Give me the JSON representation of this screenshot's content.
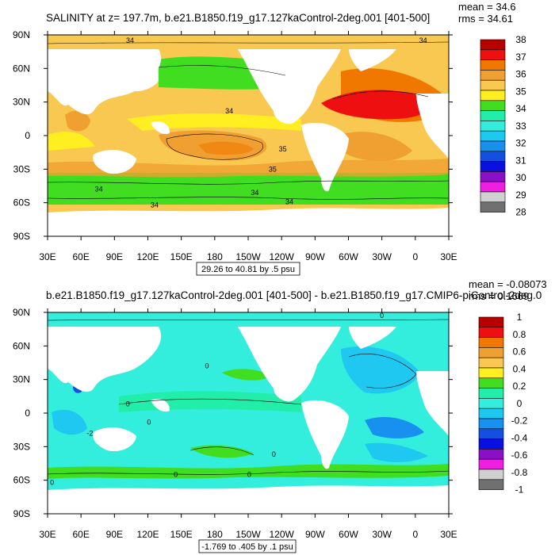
{
  "chart_data": [
    {
      "type": "heatmap",
      "title": "SALINITY at z= 197.7m, b.e21.B1850.f19_g17.127kaControl-2deg.001 [401-500]",
      "stats": [
        "mean = 34.6",
        "rms = 34.61"
      ],
      "x_ticks": [
        "30E",
        "60E",
        "90E",
        "120E",
        "150E",
        "180",
        "150W",
        "120W",
        "90W",
        "60W",
        "30W",
        "0",
        "30E"
      ],
      "y_ticks": [
        "90N",
        "60N",
        "30N",
        "0",
        "30S",
        "60S",
        "90S"
      ],
      "xlim": [
        30,
        390
      ],
      "ylim": [
        -90,
        90
      ],
      "range_label": "29.26 to 40.81 by .5 psu",
      "colorbar": {
        "labels": [
          "38",
          "37",
          "36",
          "35",
          "34",
          "33",
          "32",
          "31",
          "30",
          "29",
          "28"
        ],
        "colors": [
          "#b80000",
          "#ee1010",
          "#f07800",
          "#f0a030",
          "#f8c850",
          "#ffee20",
          "#40dd20",
          "#22eeaa",
          "#33eedd",
          "#1ec8f0",
          "#1890f0",
          "#1450e0",
          "#0a10e0",
          "#8a10c8",
          "#ee20e0",
          "#d0d0d0",
          "#707070"
        ]
      },
      "contour_labels": [
        {
          "text": "34",
          "lon": 104,
          "lat": 85
        },
        {
          "text": "34",
          "lon": 367,
          "lat": 85
        },
        {
          "text": "34",
          "lon": 193,
          "lat": 22
        },
        {
          "text": "35",
          "lon": 241,
          "lat": -12
        },
        {
          "text": "35",
          "lon": 232,
          "lat": -30
        },
        {
          "text": "34",
          "lon": 76,
          "lat": -48
        },
        {
          "text": "34",
          "lon": 126,
          "lat": -62
        },
        {
          "text": "34",
          "lon": 216,
          "lat": -51
        },
        {
          "text": "34",
          "lon": 247,
          "lat": -59
        }
      ]
    },
    {
      "type": "heatmap",
      "title": "b.e21.B1850.f19_g17.127kaControl-2deg.001 [401-500] - b.e21.B1850.f19_g17.CMIP6-piControl-2deg.0",
      "stats": [
        "mean = -0.08073",
        "rms = 0.1669"
      ],
      "x_ticks": [
        "30E",
        "60E",
        "90E",
        "120E",
        "150E",
        "180",
        "150W",
        "120W",
        "90W",
        "60W",
        "30W",
        "0",
        "30E"
      ],
      "y_ticks": [
        "90N",
        "60N",
        "30N",
        "0",
        "30S",
        "60S",
        "90S"
      ],
      "xlim": [
        30,
        390
      ],
      "ylim": [
        -90,
        90
      ],
      "range_label": "-1.769 to .405 by .1 psu",
      "colorbar": {
        "labels": [
          "1",
          "0.8",
          "0.6",
          "0.4",
          "0.2",
          "0",
          "-0.2",
          "-0.4",
          "-0.6",
          "-0.8",
          "-1"
        ],
        "colors": [
          "#b80000",
          "#ee1010",
          "#f07800",
          "#f0a030",
          "#f8c850",
          "#ffee20",
          "#40dd20",
          "#22eeaa",
          "#33eedd",
          "#1ec8f0",
          "#1890f0",
          "#1450e0",
          "#0a10e0",
          "#8a10c8",
          "#ee20e0",
          "#d0d0d0",
          "#707070"
        ]
      },
      "contour_labels": [
        {
          "text": "0",
          "lon": 330,
          "lat": 87
        },
        {
          "text": "0",
          "lon": 173,
          "lat": 42
        },
        {
          "text": "0",
          "lon": 102,
          "lat": 8
        },
        {
          "text": "0",
          "lon": 121,
          "lat": -8
        },
        {
          "text": "-2",
          "lon": 68,
          "lat": -18
        },
        {
          "text": "0",
          "lon": 233,
          "lat": -37
        },
        {
          "text": "0",
          "lon": 145,
          "lat": -55
        },
        {
          "text": "0",
          "lon": 211,
          "lat": -55
        },
        {
          "text": "0",
          "lon": 34,
          "lat": -62
        }
      ]
    }
  ]
}
